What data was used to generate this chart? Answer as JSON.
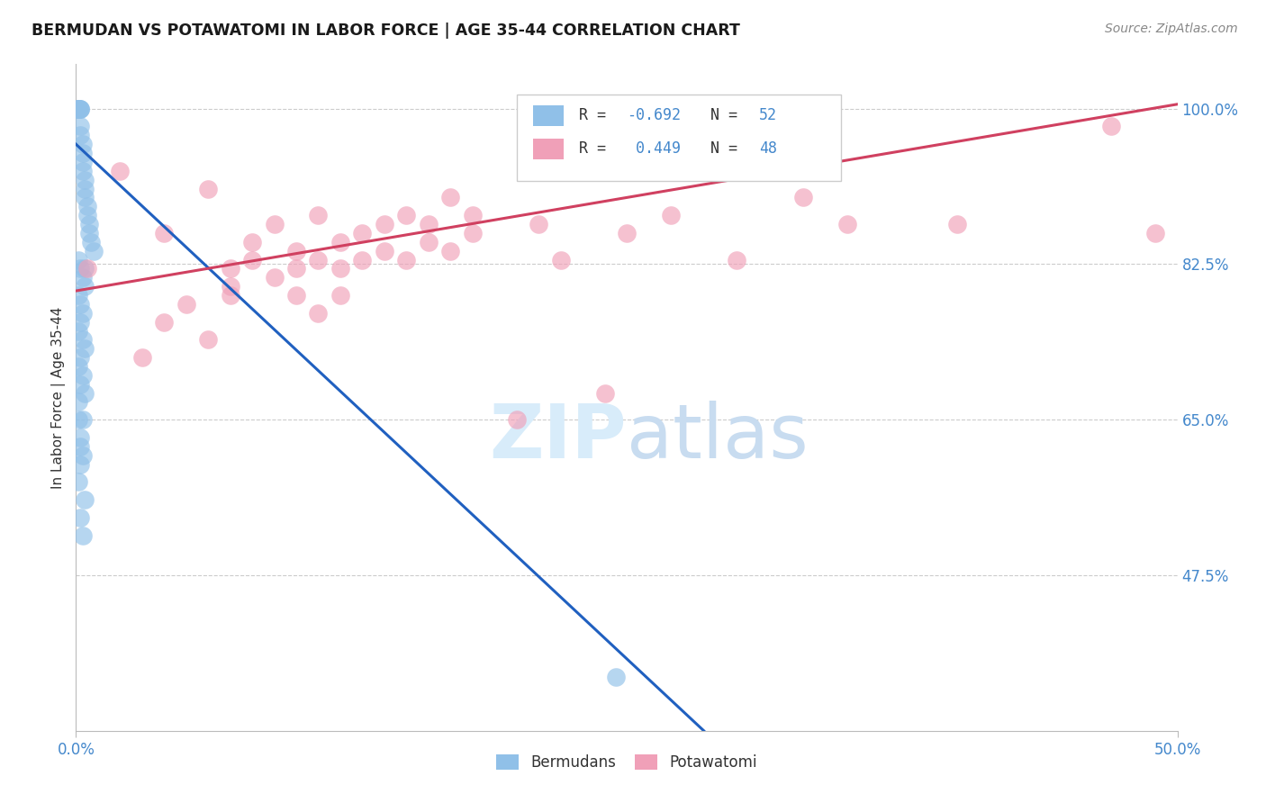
{
  "title": "BERMUDAN VS POTAWATOMI IN LABOR FORCE | AGE 35-44 CORRELATION CHART",
  "source_text": "Source: ZipAtlas.com",
  "ylabel": "In Labor Force | Age 35-44",
  "xlim": [
    0.0,
    0.5
  ],
  "ylim": [
    0.3,
    1.05
  ],
  "ytick_labels": [
    "47.5%",
    "65.0%",
    "82.5%",
    "100.0%"
  ],
  "ytick_values": [
    0.475,
    0.65,
    0.825,
    1.0
  ],
  "legend_label1": "Bermudans",
  "legend_label2": "Potawatomi",
  "r_blue": -0.692,
  "n_blue": 52,
  "r_pink": 0.449,
  "n_pink": 48,
  "blue_color": "#90C0E8",
  "pink_color": "#F0A0B8",
  "blue_line_color": "#2060C0",
  "pink_line_color": "#D04060",
  "number_color": "#4488CC",
  "watermark_color": "#D8ECFA",
  "blue_scatter_x": [
    0.001,
    0.001,
    0.001,
    0.001,
    0.001,
    0.002,
    0.002,
    0.002,
    0.002,
    0.002,
    0.003,
    0.003,
    0.003,
    0.003,
    0.004,
    0.004,
    0.004,
    0.005,
    0.005,
    0.006,
    0.006,
    0.007,
    0.008,
    0.001,
    0.002,
    0.003,
    0.004,
    0.001,
    0.002,
    0.003,
    0.002,
    0.001,
    0.003,
    0.004,
    0.002,
    0.001,
    0.003,
    0.002,
    0.004,
    0.001,
    0.003,
    0.002,
    0.003,
    0.002,
    0.001,
    0.004,
    0.002,
    0.003,
    0.001,
    0.002,
    0.004,
    0.245
  ],
  "blue_scatter_y": [
    1.0,
    1.0,
    1.0,
    1.0,
    1.0,
    1.0,
    1.0,
    1.0,
    0.98,
    0.97,
    0.96,
    0.95,
    0.94,
    0.93,
    0.92,
    0.91,
    0.9,
    0.89,
    0.88,
    0.87,
    0.86,
    0.85,
    0.84,
    0.83,
    0.82,
    0.81,
    0.8,
    0.79,
    0.78,
    0.77,
    0.76,
    0.75,
    0.74,
    0.73,
    0.72,
    0.71,
    0.7,
    0.69,
    0.68,
    0.67,
    0.65,
    0.63,
    0.61,
    0.6,
    0.58,
    0.56,
    0.54,
    0.52,
    0.65,
    0.62,
    0.82,
    0.36
  ],
  "pink_scatter_x": [
    0.005,
    0.02,
    0.03,
    0.04,
    0.04,
    0.05,
    0.06,
    0.06,
    0.07,
    0.07,
    0.07,
    0.08,
    0.08,
    0.09,
    0.09,
    0.1,
    0.1,
    0.1,
    0.11,
    0.11,
    0.11,
    0.12,
    0.12,
    0.12,
    0.13,
    0.13,
    0.14,
    0.14,
    0.15,
    0.15,
    0.16,
    0.16,
    0.17,
    0.17,
    0.18,
    0.18,
    0.2,
    0.21,
    0.22,
    0.24,
    0.25,
    0.27,
    0.3,
    0.33,
    0.35,
    0.4,
    0.47,
    0.49
  ],
  "pink_scatter_y": [
    0.82,
    0.93,
    0.72,
    0.86,
    0.76,
    0.78,
    0.74,
    0.91,
    0.8,
    0.82,
    0.79,
    0.83,
    0.85,
    0.81,
    0.87,
    0.84,
    0.79,
    0.82,
    0.83,
    0.88,
    0.77,
    0.85,
    0.82,
    0.79,
    0.86,
    0.83,
    0.87,
    0.84,
    0.88,
    0.83,
    0.87,
    0.85,
    0.9,
    0.84,
    0.86,
    0.88,
    0.65,
    0.87,
    0.83,
    0.68,
    0.86,
    0.88,
    0.83,
    0.9,
    0.87,
    0.87,
    0.98,
    0.86
  ],
  "blue_line_x0": 0.0,
  "blue_line_y0": 0.96,
  "blue_line_x1": 0.285,
  "blue_line_y1": 0.3,
  "pink_line_x0": 0.0,
  "pink_line_y0": 0.795,
  "pink_line_x1": 0.5,
  "pink_line_y1": 1.005
}
